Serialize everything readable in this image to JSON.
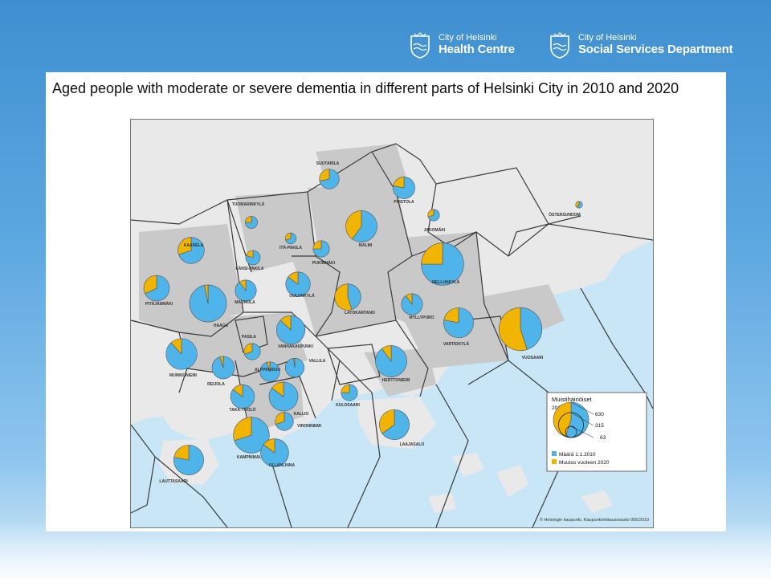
{
  "header": {
    "logo_health": {
      "line1": "City of Helsinki",
      "line2": "Health Centre"
    },
    "logo_social": {
      "line1": "City of Helsinki",
      "line2": "Social Services Department"
    }
  },
  "slide": {
    "title": "Aged people with moderate or severe dementia in different parts of Helsinki City in 2010 and 2020"
  },
  "colors": {
    "sea": "#c8e6f6",
    "land": "#e9e9e9",
    "built": "#c9c9c9",
    "blue": "#4fb4ea",
    "orange": "#f1b400",
    "border": "#3b3b3b"
  },
  "districts": [
    {
      "name": "SUUTARILA",
      "total": 130,
      "share2010": 0.72
    },
    {
      "name": "PUISTOLA",
      "total": 160,
      "share2010": 0.78
    },
    {
      "name": "JAKOMÄKI",
      "total": 45,
      "share2010": 0.7
    },
    {
      "name": "TUOMARINKYLÄ",
      "total": 50,
      "share2010": 0.75
    },
    {
      "name": "MALMI",
      "total": 330,
      "share2010": 0.6
    },
    {
      "name": "KAARELA",
      "total": 230,
      "share2010": 0.7
    },
    {
      "name": "ITÄ-PAKILA",
      "total": 40,
      "share2010": 0.7
    },
    {
      "name": "LÄNSI-PAKILA",
      "total": 70,
      "share2010": 0.8
    },
    {
      "name": "PUKINMÄKI",
      "total": 90,
      "share2010": 0.75
    },
    {
      "name": "ÖSTERSUNDOM",
      "total": 15,
      "share2010": 0.6
    },
    {
      "name": "MELLUNKYLÄ",
      "total": 600,
      "share2010": 0.75
    },
    {
      "name": "PITÄJÄNMÄKI",
      "total": 220,
      "share2010": 0.68
    },
    {
      "name": "MAUNULA",
      "total": 150,
      "share2010": 0.9
    },
    {
      "name": "OULUNKYLÄ",
      "total": 200,
      "share2010": 0.85
    },
    {
      "name": "LATOKARTANO",
      "total": 230,
      "share2010": 0.45
    },
    {
      "name": "HAAGA",
      "total": 460,
      "share2010": 0.97
    },
    {
      "name": "MYLLYPURO",
      "total": 150,
      "share2010": 0.9
    },
    {
      "name": "VARTIOKYLÄ",
      "total": 300,
      "share2010": 0.78
    },
    {
      "name": "VUOSAARI",
      "total": 620,
      "share2010": 0.45
    },
    {
      "name": "VANHAKAUPUNKI",
      "total": 270,
      "share2010": 0.87
    },
    {
      "name": "PASILA",
      "total": 90,
      "share2010": 0.7
    },
    {
      "name": "MUNKKINIEMI",
      "total": 320,
      "share2010": 0.88
    },
    {
      "name": "VALLILA",
      "total": 120,
      "share2010": 0.98
    },
    {
      "name": "REIJOLA",
      "total": 170,
      "share2010": 0.95
    },
    {
      "name": "ALPPIHARJU",
      "total": 130,
      "share2010": 0.95
    },
    {
      "name": "HERTTONIEMI",
      "total": 330,
      "share2010": 0.9
    },
    {
      "name": "TAKA-TÖÖLÖ",
      "total": 190,
      "share2010": 0.85
    },
    {
      "name": "KALLIO",
      "total": 280,
      "share2010": 0.85
    },
    {
      "name": "KULOSAARI",
      "total": 90,
      "share2010": 0.75
    },
    {
      "name": "VIRONNIEMI",
      "total": 110,
      "share2010": 0.7
    },
    {
      "name": "LAAJASALO",
      "total": 300,
      "share2010": 0.65
    },
    {
      "name": "KAMPINMALMI",
      "total": 430,
      "share2010": 0.7
    },
    {
      "name": "ULLANLINNA",
      "total": 260,
      "share2010": 0.85
    },
    {
      "name": "LAUTTASAARI",
      "total": 300,
      "share2010": 0.78
    }
  ],
  "legend": {
    "title_line1": "Muistihäiriöiset",
    "title_line2": "2010 ja 2020",
    "scale_labels": [
      "630",
      "315",
      "63"
    ],
    "blue_label": "Määrä 1.1.2010",
    "orange_label": "Muutos vuoteen 2020"
  },
  "copyright": "© Helsingin kaupunki, Kaupunkimittausosasto 056/2010"
}
